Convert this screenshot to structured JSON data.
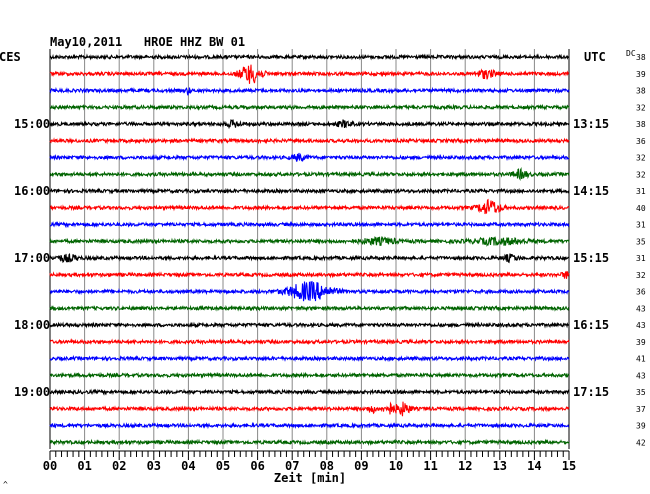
{
  "chart_data": {
    "type": "line",
    "title": "May10,2011   HROE HHZ BW 01",
    "left_corner_label": "CES",
    "right_corner_label": "UTC",
    "right_header": "DC",
    "xlabel": "Zeit [min]",
    "x_ticks": [
      "00",
      "01",
      "02",
      "03",
      "04",
      "05",
      "06",
      "07",
      "08",
      "09",
      "10",
      "11",
      "12",
      "13",
      "14",
      "15"
    ],
    "xlim": [
      0,
      15
    ],
    "left_time_labels": [
      {
        "row": 4,
        "text": "15:00"
      },
      {
        "row": 8,
        "text": "16:00"
      },
      {
        "row": 12,
        "text": "17:00"
      },
      {
        "row": 16,
        "text": "18:00"
      },
      {
        "row": 20,
        "text": "19:00"
      }
    ],
    "right_time_labels": [
      {
        "row": 4,
        "text": "13:15"
      },
      {
        "row": 8,
        "text": "14:15"
      },
      {
        "row": 12,
        "text": "15:15"
      },
      {
        "row": 16,
        "text": "16:15"
      },
      {
        "row": 20,
        "text": "17:15"
      }
    ],
    "trace_colors": [
      "#000000",
      "#ff0000",
      "#0000ff",
      "#006400"
    ],
    "dc_offsets": [
      38,
      39,
      38,
      32,
      38,
      36,
      32,
      32,
      31,
      40,
      31,
      35,
      31,
      32,
      36,
      43,
      43,
      39,
      41,
      43,
      35,
      37,
      39,
      42
    ],
    "events": [
      {
        "row": 1,
        "t": 5.8,
        "amp": 9,
        "dur": 0.6
      },
      {
        "row": 1,
        "t": 12.6,
        "amp": 4,
        "dur": 0.5
      },
      {
        "row": 2,
        "t": 4.0,
        "amp": 4,
        "dur": 0.1
      },
      {
        "row": 4,
        "t": 5.3,
        "amp": 3,
        "dur": 0.4
      },
      {
        "row": 4,
        "t": 8.5,
        "amp": 3,
        "dur": 0.4
      },
      {
        "row": 6,
        "t": 7.2,
        "amp": 3,
        "dur": 0.4
      },
      {
        "row": 7,
        "t": 13.6,
        "amp": 4,
        "dur": 0.4
      },
      {
        "row": 9,
        "t": 12.7,
        "amp": 7,
        "dur": 0.6
      },
      {
        "row": 11,
        "t": 9.5,
        "amp": 3,
        "dur": 1.0
      },
      {
        "row": 11,
        "t": 13.0,
        "amp": 3,
        "dur": 1.5
      },
      {
        "row": 12,
        "t": 0.5,
        "amp": 3,
        "dur": 0.6
      },
      {
        "row": 12,
        "t": 13.3,
        "amp": 3,
        "dur": 0.4
      },
      {
        "row": 13,
        "t": 14.9,
        "amp": 3,
        "dur": 0.2
      },
      {
        "row": 14,
        "t": 7.5,
        "amp": 9,
        "dur": 1.2
      },
      {
        "row": 21,
        "t": 9.3,
        "amp": 4,
        "dur": 0.2
      },
      {
        "row": 21,
        "t": 9.8,
        "amp": 5,
        "dur": 0.3
      },
      {
        "row": 21,
        "t": 10.2,
        "amp": 6,
        "dur": 0.4
      }
    ],
    "grid": true
  },
  "footer_mark": "^"
}
